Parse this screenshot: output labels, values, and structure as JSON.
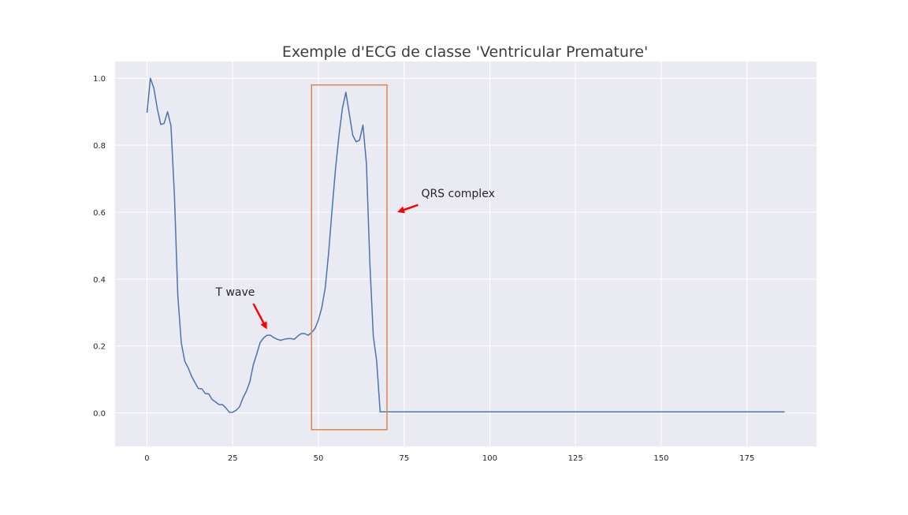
{
  "chart_data": {
    "type": "line",
    "title": "Exemple d'ECG de classe 'Ventricular Premature'",
    "xlabel": "",
    "ylabel": "",
    "xlim": [
      -9.3,
      195.3
    ],
    "ylim": [
      -0.1,
      1.05
    ],
    "xticks": [
      0,
      25,
      50,
      75,
      100,
      125,
      150,
      175
    ],
    "yticks": [
      0.0,
      0.2,
      0.4,
      0.6,
      0.8,
      1.0
    ],
    "ytick_labels": [
      "0.0",
      "0.2",
      "0.4",
      "0.6",
      "0.8",
      "1.0"
    ],
    "grid": true,
    "background": "#eaeaf2",
    "grid_color": "#ffffff",
    "series": [
      {
        "color": "#4c72b0",
        "x": [
          0,
          1,
          2,
          3,
          4,
          5,
          6,
          7,
          8,
          9,
          10,
          11,
          12,
          13,
          14,
          15,
          16,
          17,
          18,
          19,
          20,
          21,
          22,
          23,
          24,
          25,
          26,
          27,
          28,
          29,
          30,
          31,
          32,
          33,
          34,
          35,
          36,
          37,
          38,
          39,
          40,
          41,
          42,
          43,
          44,
          45,
          46,
          47,
          48,
          49,
          50,
          51,
          52,
          53,
          54,
          55,
          56,
          57,
          58,
          59,
          60,
          61,
          62,
          63,
          64,
          65,
          66,
          67,
          68,
          69,
          186
        ],
        "y": [
          0.897,
          1.0,
          0.97,
          0.91,
          0.862,
          0.865,
          0.9,
          0.858,
          0.65,
          0.35,
          0.21,
          0.155,
          0.135,
          0.11,
          0.09,
          0.073,
          0.072,
          0.058,
          0.057,
          0.04,
          0.033,
          0.025,
          0.025,
          0.015,
          0.002,
          0.002,
          0.008,
          0.018,
          0.045,
          0.065,
          0.093,
          0.143,
          0.176,
          0.21,
          0.224,
          0.232,
          0.232,
          0.225,
          0.22,
          0.217,
          0.22,
          0.222,
          0.222,
          0.22,
          0.23,
          0.237,
          0.237,
          0.232,
          0.24,
          0.252,
          0.278,
          0.315,
          0.375,
          0.48,
          0.61,
          0.73,
          0.83,
          0.91,
          0.958,
          0.895,
          0.83,
          0.81,
          0.815,
          0.86,
          0.745,
          0.45,
          0.23,
          0.155,
          0.003,
          0.003,
          0.003
        ]
      }
    ],
    "annotations": [
      {
        "text": "T wave",
        "text_x": 20,
        "text_y": 0.35,
        "arrow_to_x": 35,
        "arrow_to_y": 0.25,
        "arrow_color": "#ff0000"
      },
      {
        "text": "QRS complex",
        "text_x": 80,
        "text_y": 0.645,
        "arrow_to_x": 73,
        "arrow_to_y": 0.6,
        "arrow_color": "#ff0000"
      }
    ],
    "highlight_box": {
      "x0": 48,
      "x1": 70,
      "y0": -0.05,
      "y1": 0.98,
      "color": "#dd8452"
    }
  }
}
